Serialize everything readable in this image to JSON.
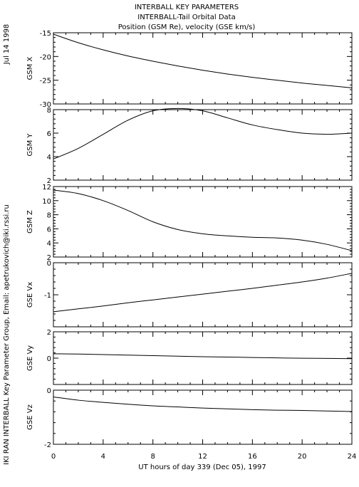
{
  "side_date": "Jul 14 1998",
  "side_credit": "IKI RAN INTERBALL Key Parameter Group, Email: apetrukovich@iki.rssi.ru",
  "title_lines": [
    "INTERBALL KEY PARAMETERS",
    "INTERBALL-Tail Orbital Data",
    "Position (GSM Re), velocity (GSE km/s)"
  ],
  "chart_data": {
    "type": "line",
    "title": "INTERBALL KEY PARAMETERS / INTERBALL-Tail Orbital Data / Position (GSM Re), velocity (GSE km/s)",
    "xlabel": "UT hours of day 339 (Dec 05), 1997",
    "xlim": [
      0,
      24
    ],
    "xticks": [
      0,
      4,
      8,
      12,
      16,
      20,
      24
    ],
    "x": [
      0,
      2,
      4,
      6,
      8,
      10,
      12,
      14,
      16,
      18,
      20,
      22,
      24
    ],
    "panels": [
      {
        "ylabel": "GSM X",
        "ylim": [
          -30,
          -15
        ],
        "yticks": [
          -15,
          -20,
          -25,
          -30
        ],
        "values": [
          -15.3,
          -17.1,
          -18.6,
          -19.9,
          -21.0,
          -22.0,
          -22.9,
          -23.7,
          -24.4,
          -25.0,
          -25.6,
          -26.1,
          -26.6
        ]
      },
      {
        "ylabel": "GSM Y",
        "ylim": [
          2,
          8
        ],
        "yticks": [
          8,
          6,
          4,
          2
        ],
        "values": [
          3.8,
          4.7,
          5.9,
          7.1,
          7.9,
          8.1,
          7.9,
          7.3,
          6.7,
          6.3,
          6.0,
          5.9,
          6.0
        ]
      },
      {
        "ylabel": "GSM Z",
        "ylim": [
          2,
          12
        ],
        "yticks": [
          12,
          10,
          8,
          6,
          4,
          2
        ],
        "values": [
          11.5,
          11.0,
          10.0,
          8.6,
          7.0,
          5.9,
          5.3,
          5.0,
          4.8,
          4.7,
          4.4,
          3.8,
          2.9
        ]
      },
      {
        "ylabel": "GSE Vx",
        "ylim": [
          -2,
          0
        ],
        "yticks": [
          0,
          -1,
          -2
        ],
        "ytick_labels": [
          "0",
          "-1",
          ""
        ],
        "values": [
          -1.53,
          -1.44,
          -1.35,
          -1.25,
          -1.16,
          -1.07,
          -0.98,
          -0.89,
          -0.8,
          -0.7,
          -0.6,
          -0.48,
          -0.33
        ]
      },
      {
        "ylabel": "GSE Vy",
        "ylim": [
          -2,
          2
        ],
        "yticks": [
          2,
          0,
          -2
        ],
        "ytick_labels": [
          "2",
          "0",
          ""
        ],
        "values": [
          0.33,
          0.31,
          0.27,
          0.23,
          0.19,
          0.15,
          0.11,
          0.08,
          0.05,
          0.02,
          -0.01,
          -0.02,
          -0.04
        ]
      },
      {
        "ylabel": "GSE Vz",
        "ylim": [
          -2,
          0
        ],
        "yticks": [
          0,
          -2
        ],
        "ytick_labels": [
          "0",
          "-2"
        ],
        "values": [
          -0.25,
          -0.37,
          -0.45,
          -0.52,
          -0.58,
          -0.62,
          -0.66,
          -0.69,
          -0.72,
          -0.74,
          -0.75,
          -0.77,
          -0.79
        ]
      }
    ]
  }
}
